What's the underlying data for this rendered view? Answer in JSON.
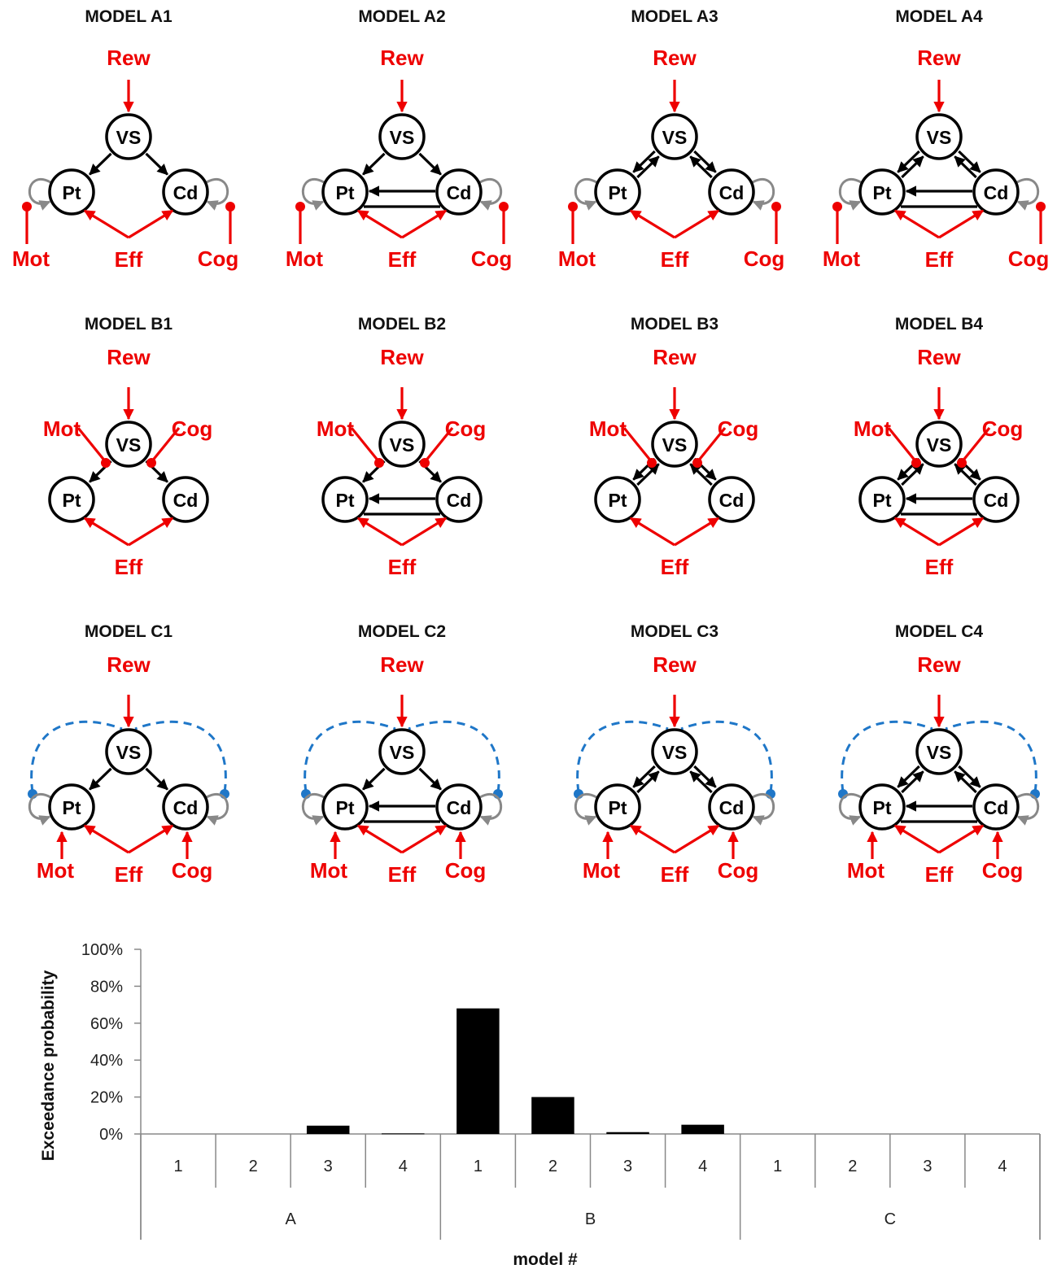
{
  "diagram": {
    "colors": {
      "node_stroke": "#000000",
      "drive": "#ee0000",
      "self_loop": "#888888",
      "long_range": "#1f77c8"
    },
    "node_labels": {
      "vs": "VS",
      "pt": "Pt",
      "cd": "Cd"
    },
    "input_labels": {
      "rew": "Rew",
      "mot": "Mot",
      "cog": "Cog",
      "eff": "Eff"
    },
    "models": [
      {
        "title": "MODEL A1",
        "family": "A",
        "striatal_link": false,
        "vs_feedback": false
      },
      {
        "title": "MODEL A2",
        "family": "A",
        "striatal_link": true,
        "vs_feedback": false
      },
      {
        "title": "MODEL A3",
        "family": "A",
        "striatal_link": false,
        "vs_feedback": true
      },
      {
        "title": "MODEL A4",
        "family": "A",
        "striatal_link": true,
        "vs_feedback": true
      },
      {
        "title": "MODEL B1",
        "family": "B",
        "striatal_link": false,
        "vs_feedback": false
      },
      {
        "title": "MODEL B2",
        "family": "B",
        "striatal_link": true,
        "vs_feedback": false
      },
      {
        "title": "MODEL B3",
        "family": "B",
        "striatal_link": false,
        "vs_feedback": true
      },
      {
        "title": "MODEL B4",
        "family": "B",
        "striatal_link": true,
        "vs_feedback": true
      },
      {
        "title": "MODEL C1",
        "family": "C",
        "striatal_link": false,
        "vs_feedback": false
      },
      {
        "title": "MODEL C2",
        "family": "C",
        "striatal_link": true,
        "vs_feedback": false
      },
      {
        "title": "MODEL C3",
        "family": "C",
        "striatal_link": false,
        "vs_feedback": true
      },
      {
        "title": "MODEL C4",
        "family": "C",
        "striatal_link": true,
        "vs_feedback": true
      }
    ]
  },
  "chart_data": {
    "type": "bar",
    "ylabel": "Exceedance probability",
    "xlabel": "model #",
    "ylim": [
      0,
      100
    ],
    "yticks": [
      "0%",
      "20%",
      "40%",
      "60%",
      "80%",
      "100%"
    ],
    "groups": [
      "A",
      "B",
      "C"
    ],
    "categories": [
      "1",
      "2",
      "3",
      "4",
      "1",
      "2",
      "3",
      "4",
      "1",
      "2",
      "3",
      "4"
    ],
    "values": [
      0,
      0,
      4.5,
      0.3,
      68,
      20,
      1,
      5,
      0,
      0,
      0,
      0
    ],
    "bar_color": "#000000",
    "grid": false
  }
}
